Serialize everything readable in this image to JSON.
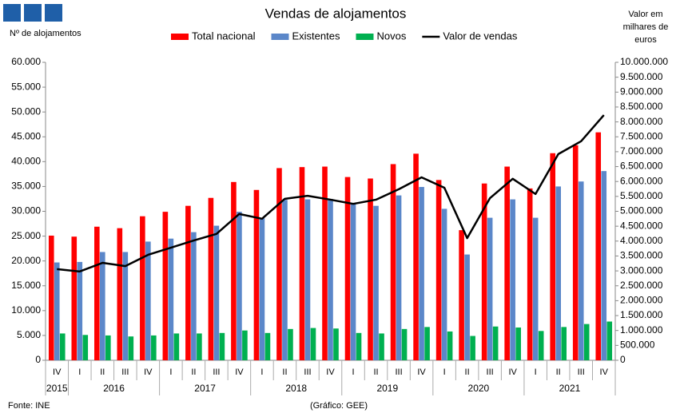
{
  "chart_data": {
    "type": "bar",
    "title": "Vendas de alojamentos",
    "y_label": "Nº de alojamentos",
    "y2_label": [
      "Valor em",
      "milhares de",
      "euros"
    ],
    "source": "Fonte: INE",
    "credit": "(Gráfico: GEE)",
    "categories": [
      "IV",
      "I",
      "II",
      "III",
      "IV",
      "I",
      "II",
      "III",
      "IV",
      "I",
      "II",
      "III",
      "IV",
      "I",
      "II",
      "III",
      "IV",
      "I",
      "II",
      "III",
      "IV",
      "I",
      "II",
      "III",
      "IV"
    ],
    "years": [
      "2015",
      "2016",
      "2017",
      "2018",
      "2019",
      "2020",
      "2021"
    ],
    "series": [
      {
        "name": "Total nacional",
        "color": "#ff0000",
        "values": [
          25100,
          24900,
          26900,
          26600,
          29000,
          29900,
          31100,
          32700,
          35900,
          34300,
          38700,
          38900,
          39000,
          36900,
          36600,
          39500,
          41600,
          36300,
          26200,
          35600,
          39000,
          34600,
          41700,
          43300,
          45900
        ]
      },
      {
        "name": "Existentes",
        "color": "#5b87c9",
        "values": [
          19700,
          19800,
          21800,
          21800,
          23900,
          24500,
          25800,
          27100,
          29900,
          28600,
          32300,
          32400,
          32500,
          31500,
          31100,
          33200,
          34900,
          30500,
          21300,
          28700,
          32400,
          28700,
          35000,
          36000,
          38100
        ]
      },
      {
        "name": "Novos",
        "color": "#00b050",
        "values": [
          5400,
          5100,
          5000,
          4800,
          5000,
          5400,
          5400,
          5500,
          6000,
          5500,
          6300,
          6500,
          6400,
          5500,
          5400,
          6300,
          6700,
          5800,
          4900,
          6800,
          6600,
          5900,
          6700,
          7300,
          7800
        ]
      },
      {
        "name": "Valor de vendas",
        "color": "#000000",
        "type": "line",
        "axis": "y2",
        "values": [
          3060000,
          2980000,
          3270000,
          3160000,
          3540000,
          3780000,
          4020000,
          4240000,
          4910000,
          4750000,
          5420000,
          5520000,
          5390000,
          5250000,
          5390000,
          5740000,
          6140000,
          5790000,
          4100000,
          5440000,
          6090000,
          5580000,
          6920000,
          7350000,
          8230000
        ]
      }
    ],
    "ylim": [
      0,
      60000
    ],
    "yticks": [
      0,
      {
        "value": 5000,
        "label": "5.000"
      },
      {
        "value": 10000,
        "label": "10.000"
      },
      {
        "value": 15000,
        "label": "15.000"
      },
      {
        "value": 20000,
        "label": "20.000"
      },
      {
        "value": 25000,
        "label": "25.000"
      },
      {
        "value": 30000,
        "label": "30.000"
      },
      {
        "value": 35000,
        "label": "35.000"
      },
      {
        "value": 40000,
        "label": "40.000"
      },
      {
        "value": 45000,
        "label": "45.000"
      },
      {
        "value": 50000,
        "label": "50.000"
      },
      {
        "value": 55000,
        "label": "55.000"
      },
      {
        "value": 60000,
        "label": "60.000"
      }
    ],
    "y2lim": [
      0,
      10000000
    ],
    "y2ticks": [
      0,
      {
        "value": 500000,
        "label": "500.000"
      },
      {
        "value": 1000000,
        "label": "1.000.000"
      },
      {
        "value": 1500000,
        "label": "1.500.000"
      },
      {
        "value": 2000000,
        "label": "2.000.000"
      },
      {
        "value": 2500000,
        "label": "2.500.000"
      },
      {
        "value": 3000000,
        "label": "3.000.000"
      },
      {
        "value": 3500000,
        "label": "3.500.000"
      },
      {
        "value": 4000000,
        "label": "4.000.000"
      },
      {
        "value": 4500000,
        "label": "4.500.000"
      },
      {
        "value": 5000000,
        "label": "5.000.000"
      },
      {
        "value": 5500000,
        "label": "5.500.000"
      },
      {
        "value": 6000000,
        "label": "6.000.000"
      },
      {
        "value": 6500000,
        "label": "6.500.000"
      },
      {
        "value": 7000000,
        "label": "7.000.000"
      },
      {
        "value": 7500000,
        "label": "7.500.000"
      },
      {
        "value": 8000000,
        "label": "8.000.000"
      },
      {
        "value": 8500000,
        "label": "8.500.000"
      },
      {
        "value": 9000000,
        "label": "9.000.000"
      },
      {
        "value": 9500000,
        "label": "9.500.000"
      },
      {
        "value": 10000000,
        "label": "10.000.000"
      }
    ],
    "grid": false,
    "legend": "top"
  }
}
